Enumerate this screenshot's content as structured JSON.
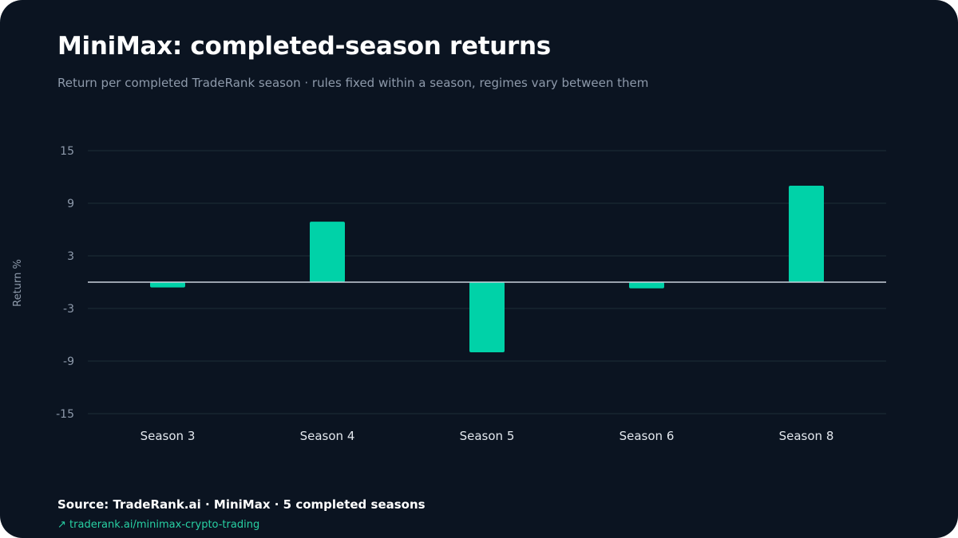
{
  "header": {
    "title": "MiniMax: completed-season returns",
    "subtitle": "Return per completed TradeRank season · rules fixed within a season, regimes vary between them"
  },
  "footer": {
    "source": "Source: TradeRank.ai · MiniMax · 5 completed seasons",
    "link_arrow": "↗",
    "link_text": "traderank.ai/minimax-crypto-trading"
  },
  "colors": {
    "background": "#0b1421",
    "bar": "#00d2a8",
    "grid": "#1e2e38",
    "zero_line": "#c9d1dc",
    "link": "#28d1a4"
  },
  "chart_data": {
    "type": "bar",
    "title": "MiniMax: completed-season returns",
    "subtitle": "Return per completed TradeRank season · rules fixed within a season, regimes vary between them",
    "xlabel": "",
    "ylabel": "Return %",
    "categories": [
      "Season 3",
      "Season 4",
      "Season 5",
      "Season 6",
      "Season 8"
    ],
    "values": [
      -0.6,
      6.9,
      -8.0,
      -0.7,
      11.0
    ],
    "ylim": [
      -15,
      15
    ],
    "yticks": [
      15,
      9,
      3,
      -3,
      -9,
      -15
    ],
    "grid": true,
    "legend": "none"
  }
}
